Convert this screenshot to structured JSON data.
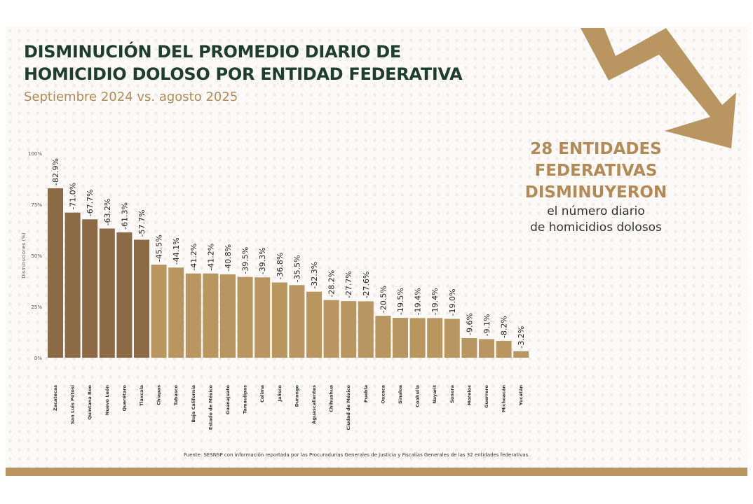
{
  "title_line1": "DISMINUCIÓN DEL PROMEDIO DIARIO DE",
  "title_line2": "HOMICIDIO DOLOSO POR ENTIDAD FEDERATIVA",
  "subtitle": "Septiembre 2024 vs. agosto 2025",
  "callout": {
    "line1": "28 ENTIDADES",
    "line2": "FEDERATIVAS",
    "line3": "DISMINUYERON",
    "line4": "el número diario",
    "line5": "de homicidios dolosos"
  },
  "source": "Fuente: SESNSP con información reportada por las Procuradurías Generales de Justicia y Fiscalías Generales de las 32 entidades federativas.",
  "colors": {
    "dark_bar": "#8b6a45",
    "light_bar": "#b99560",
    "title": "#1f3d2e",
    "accent": "#b38a54"
  },
  "icon": "downward-zigzag-arrow-icon",
  "chart_data": {
    "type": "bar",
    "ylabel": "Disminuciones (%)",
    "ylim": [
      0,
      100
    ],
    "yticks": [
      "0%",
      "25%",
      "50%",
      "75%",
      "100%"
    ],
    "grid": false,
    "categories": [
      "Zacatecas",
      "San Luis Potosí",
      "Quintana Roo",
      "Nuevo León",
      "Querétaro",
      "Tlaxcala",
      "Chiapas",
      "Tabasco",
      "Baja California",
      "Estado de México",
      "Guanajuato",
      "Tamaulipas",
      "Colima",
      "Jalisco",
      "Durango",
      "Aguascalientes",
      "Chihuahua",
      "Ciudad de México",
      "Puebla",
      "Oaxaca",
      "Sinaloa",
      "Coahuila",
      "Nayarit",
      "Sonora",
      "Morelos",
      "Guerrero",
      "Michoacán",
      "Yucatán"
    ],
    "values": [
      82.9,
      71.0,
      67.7,
      63.2,
      61.3,
      57.7,
      45.5,
      44.1,
      41.2,
      41.2,
      40.8,
      39.5,
      39.3,
      36.8,
      35.5,
      32.3,
      28.2,
      27.7,
      27.6,
      20.5,
      19.5,
      19.4,
      19.4,
      19.0,
      9.6,
      9.1,
      8.2,
      3.2
    ],
    "data_labels": [
      "-82.9%",
      "-71.0%",
      "-67.7%",
      "-63.2%",
      "-61.3%",
      "-57.7%",
      "-45.5%",
      "-44.1%",
      "-41.2%",
      "-41.2%",
      "-40.8%",
      "-39.5%",
      "-39.3%",
      "-36.8%",
      "-35.5%",
      "-32.3%",
      "-28.2%",
      "-27.7%",
      "-27.6%",
      "-20.5%",
      "-19.5%",
      "-19.4%",
      "-19.4%",
      "-19.0%",
      "-9.6%",
      "-9.1%",
      "-8.2%",
      "-3.2%"
    ],
    "highlighted_count": 6
  }
}
